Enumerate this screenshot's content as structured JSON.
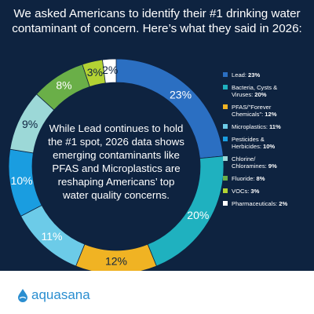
{
  "chart_data": {
    "type": "donut",
    "title": "We asked Americans to identify their #1 drinking water contaminant of concern. Here’s what they said in 2026:",
    "center_text": "While Lead continues to hold the #1 spot, 2026 data shows emerging contaminants like PFAS and Microplastics are reshaping Americans’ top water quality concerns.",
    "categories": [
      "Lead:",
      "Bacteria, Cysts & Viruses:",
      "PFAS/\"Forever Chemicals\":",
      "Microplastics:",
      "Pesticides & Herbicides:",
      "Chlorine/ Chloramines:",
      "Fluoride:",
      "VOCs:",
      "Pharmaceuticals:"
    ],
    "values": [
      23,
      20,
      12,
      11,
      10,
      9,
      8,
      3,
      2
    ],
    "value_labels": [
      "23%",
      "20%",
      "12%",
      "11%",
      "10%",
      "9%",
      "8%",
      "3%",
      "2%"
    ],
    "colors": [
      "#2b6fc2",
      "#1fb1bf",
      "#f0b323",
      "#6ccbe8",
      "#1a9de0",
      "#9cd8d7",
      "#6aaf48",
      "#b3d233",
      "#ffffff"
    ]
  },
  "footer": {
    "brand": "aquasana"
  }
}
